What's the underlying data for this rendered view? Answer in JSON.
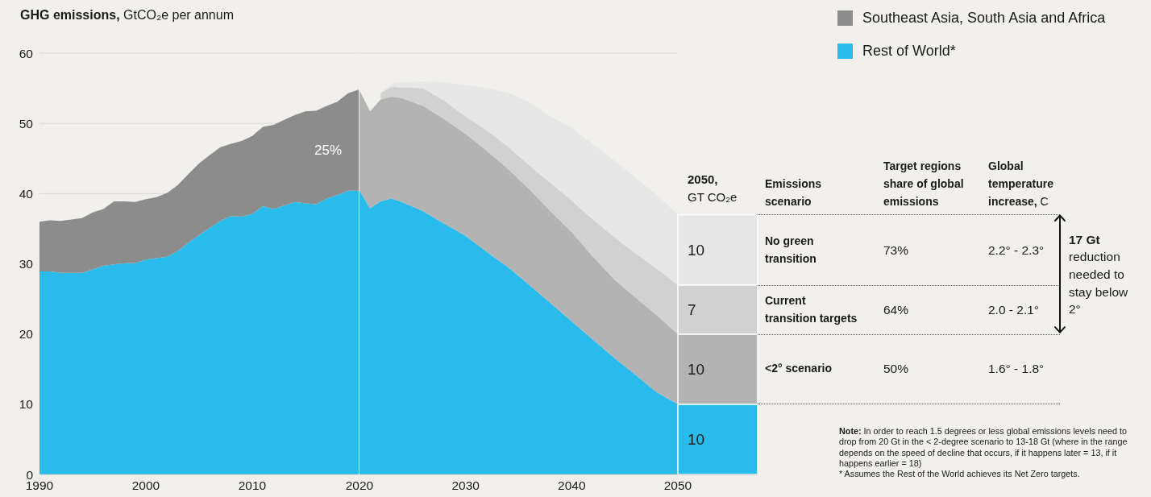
{
  "chart_data": [
    {
      "type": "area",
      "title": "GHG emissions, GtCO₂e per annum",
      "stacked": true,
      "x": [
        1990,
        1991,
        1992,
        1993,
        1994,
        1995,
        1996,
        1997,
        1998,
        1999,
        2000,
        2001,
        2002,
        2003,
        2004,
        2005,
        2006,
        2007,
        2008,
        2009,
        2010,
        2011,
        2012,
        2013,
        2014,
        2015,
        2016,
        2017,
        2018,
        2019,
        2020
      ],
      "series": [
        {
          "name": "Rest of World*",
          "color": "#29bbec",
          "values": [
            28.9,
            28.9,
            28.7,
            28.7,
            28.7,
            29.2,
            29.7,
            29.9,
            30.1,
            30.1,
            30.6,
            30.8,
            31.0,
            31.8,
            33.0,
            34.1,
            35.1,
            36.1,
            36.8,
            36.7,
            37.1,
            38.2,
            37.8,
            38.3,
            38.8,
            38.6,
            38.5,
            39.3,
            39.8,
            40.4,
            40.4
          ]
        },
        {
          "name": "Southeast Asia, South Asia and Africa",
          "color": "#8c8c8c",
          "values": [
            7.1,
            7.3,
            7.4,
            7.6,
            7.8,
            8.1,
            8.1,
            9.0,
            8.8,
            8.7,
            8.6,
            8.7,
            9.1,
            9.4,
            9.8,
            10.2,
            10.4,
            10.5,
            10.3,
            10.8,
            11.1,
            11.3,
            12.0,
            12.2,
            12.4,
            13.1,
            13.3,
            13.2,
            13.3,
            13.9,
            14.4
          ]
        }
      ],
      "xlim": [
        1990,
        2020
      ],
      "xticks": [
        1990,
        2000,
        2010
      ],
      "ylim": [
        0,
        60
      ],
      "yticks": [
        0,
        10,
        20,
        30,
        40,
        50,
        60
      ],
      "grid": "y",
      "legend": "top right",
      "annotations": [
        "25%"
      ]
    },
    {
      "type": "area",
      "stacked": true,
      "x": [
        2020,
        2021,
        2022,
        2023,
        2024,
        2026,
        2028,
        2030,
        2032,
        2034,
        2036,
        2038,
        2040,
        2042,
        2044,
        2046,
        2048,
        2050
      ],
      "series": [
        {
          "color": "#29bbec",
          "values": [
            40.4,
            37.9,
            38.9,
            39.3,
            38.8,
            37.5,
            35.7,
            34.0,
            31.7,
            29.5,
            27.0,
            24.4,
            21.8,
            19.2,
            16.6,
            14.2,
            11.7,
            10
          ]
        },
        {
          "color": "#b3b3b3",
          "values": [
            14.3,
            13.8,
            14.5,
            14.5,
            14.8,
            15.0,
            14.9,
            14.5,
            14.4,
            14.0,
            13.6,
            13.1,
            12.7,
            11.8,
            11.2,
            11.0,
            11.0,
            10
          ]
        },
        {
          "color": "#d0d1d0",
          "values": [
            null,
            null,
            0.9,
            1.4,
            1.5,
            2.5,
            2.6,
            2.5,
            2.9,
            3.2,
            3.4,
            4.0,
            4.5,
            5.3,
            6.0,
            6.3,
            6.6,
            7
          ]
        },
        {
          "color": "#e7e7e7",
          "values": [
            null,
            null,
            0.2,
            0.4,
            0.7,
            1.0,
            2.6,
            4.5,
            6.0,
            7.7,
            9.0,
            9.5,
            10.4,
            10.7,
            10.9,
            10.8,
            10.5,
            10
          ]
        }
      ],
      "xlim": [
        2020,
        2050
      ],
      "xticks": [
        2020,
        2030,
        2040,
        2050
      ],
      "ylim": [
        0,
        60
      ],
      "yticks": [
        0,
        10,
        20,
        30,
        40,
        50,
        60
      ],
      "grid": "y",
      "tick_labels": "x"
    },
    {
      "type": "bar",
      "title": "2050, GT CO₂e",
      "stacked": true,
      "categories": [
        null
      ],
      "series": [
        {
          "color": "#29bbec",
          "values": [
            10
          ]
        },
        {
          "color": "#b3b3b3",
          "values": [
            10
          ]
        },
        {
          "color": "#d0d1d0",
          "values": [
            7
          ]
        },
        {
          "color": "#e7e7e7",
          "values": [
            10
          ]
        }
      ],
      "ylim": [
        0,
        60
      ],
      "data_labels": true,
      "tick_labels": false
    },
    {
      "type": "other",
      "categories": [
        "Emissions scenario",
        "Target regions share of global emissions",
        "Global temperature increase, C"
      ],
      "cell_labels": [
        [
          "No green transition",
          "73%",
          "2.2° - 2.3°"
        ],
        [
          "Current transition targets",
          "64%",
          "2.0 - 2.1°"
        ],
        [
          "<2° scenario",
          "50%",
          "1.6° - 1.8°"
        ]
      ],
      "annotations": [
        "17 Gt reduction needed to stay below 2°",
        "Note: In order to reach 1.5 degrees or less global emissions levels need to drop from 20 Gt in the < 2-degree scenario to 13-18 Gt (where in the range depends on the speed of decline that occurs, if it happens later = 13, if it happens earlier = 18)",
        "* Assumes the Rest of the World achieves its Net Zero targets."
      ]
    }
  ]
}
